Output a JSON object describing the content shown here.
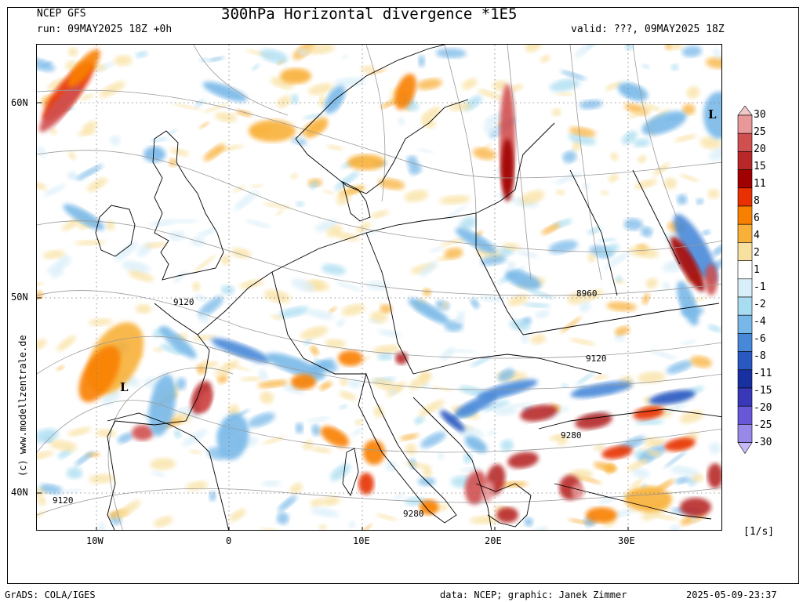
{
  "header": {
    "model": "NCEP GFS",
    "run": "run: 09MAY2025 18Z +0h",
    "title": "300hPa Horizontal divergence *1E5",
    "valid": "valid: ???, 09MAY2025 18Z"
  },
  "map": {
    "lat_labels": [
      "60N",
      "50N",
      "40N"
    ],
    "lon_labels": [
      "10W",
      "0",
      "10E",
      "20E",
      "30E"
    ],
    "contour_labels": [
      "9120",
      "8960",
      "9120",
      "9280",
      "9120",
      "9280"
    ],
    "low_markers": [
      "L",
      "L"
    ],
    "credit": "(c) www.modellzentrale.de"
  },
  "colorbar": {
    "unit": "[1/s]",
    "levels": [
      "30",
      "25",
      "20",
      "15",
      "11",
      "8",
      "6",
      "4",
      "2",
      "1",
      "-1",
      "-2",
      "-4",
      "-6",
      "-8",
      "-11",
      "-15",
      "-20",
      "-25",
      "-30"
    ],
    "colors": [
      "#f0c8c8",
      "#e89898",
      "#d05050",
      "#b82828",
      "#a00000",
      "#e83000",
      "#f88000",
      "#f8b038",
      "#f8e0a0",
      "#ffffff",
      "#d8eef8",
      "#a8dcf0",
      "#78b8e8",
      "#4888d8",
      "#2858c0",
      "#1830a0",
      "#3838b8",
      "#6858d8",
      "#9888e8",
      "#c8b8f8"
    ]
  },
  "footer": {
    "left": "GrADS: COLA/IGES",
    "middle": "data: NCEP; graphic: Janek Zimmer",
    "right": "2025-05-09-23:37"
  }
}
